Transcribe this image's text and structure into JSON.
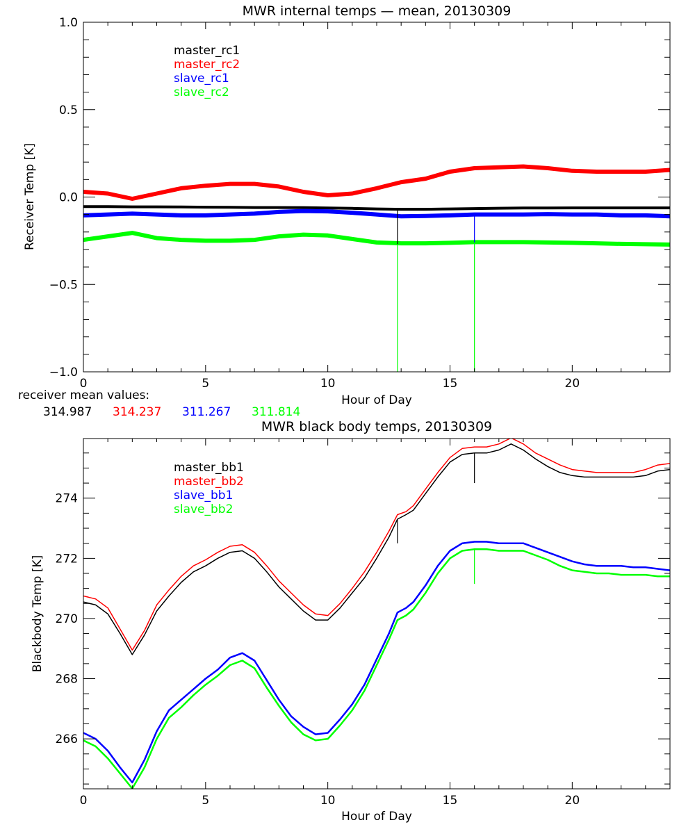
{
  "chart_data": [
    {
      "type": "line",
      "title": "MWR internal temps — mean, 20130309",
      "xlabel": "Hour of Day",
      "ylabel": "Receiver Temp [K]",
      "xlim": [
        0,
        24
      ],
      "ylim": [
        -1.0,
        1.0
      ],
      "xticks": [
        0,
        5,
        10,
        15,
        20
      ],
      "xtick_labels": [
        "0",
        "5",
        "10",
        "15",
        "20"
      ],
      "yticks": [
        -1.0,
        -0.5,
        0.0,
        0.5,
        1.0
      ],
      "ytick_labels": [
        "−1.0",
        "−0.5",
        "0.0",
        "0.5",
        "1.0"
      ],
      "x_minor_step": 1,
      "y_minor_step": 0.1,
      "grid": false,
      "legend_placement": "top-left",
      "x": [
        0,
        1,
        2,
        3,
        4,
        5,
        6,
        7,
        8,
        9,
        10,
        11,
        12,
        13,
        14,
        15,
        16,
        17,
        18,
        19,
        20,
        21,
        22,
        23,
        24
      ],
      "series": [
        {
          "name": "master_rc1",
          "color": "#000000",
          "width": 4,
          "values": [
            -0.055,
            -0.055,
            -0.056,
            -0.056,
            -0.057,
            -0.058,
            -0.059,
            -0.06,
            -0.06,
            -0.061,
            -0.063,
            -0.065,
            -0.068,
            -0.07,
            -0.07,
            -0.068,
            -0.066,
            -0.064,
            -0.063,
            -0.063,
            -0.062,
            -0.062,
            -0.062,
            -0.062,
            -0.062
          ]
        },
        {
          "name": "master_rc2",
          "color": "#ff0000",
          "width": 6,
          "values": [
            0.03,
            0.02,
            -0.01,
            0.02,
            0.05,
            0.065,
            0.075,
            0.075,
            0.06,
            0.03,
            0.01,
            0.02,
            0.05,
            0.085,
            0.105,
            0.145,
            0.165,
            0.17,
            0.175,
            0.165,
            0.15,
            0.145,
            0.145,
            0.145,
            0.155
          ]
        },
        {
          "name": "slave_rc1",
          "color": "#0000ff",
          "width": 6,
          "values": [
            -0.105,
            -0.1,
            -0.095,
            -0.1,
            -0.105,
            -0.105,
            -0.1,
            -0.095,
            -0.085,
            -0.08,
            -0.082,
            -0.09,
            -0.1,
            -0.11,
            -0.108,
            -0.105,
            -0.1,
            -0.1,
            -0.1,
            -0.098,
            -0.1,
            -0.1,
            -0.105,
            -0.105,
            -0.11
          ]
        },
        {
          "name": "slave_rc2",
          "color": "#00ff00",
          "width": 6,
          "values": [
            -0.245,
            -0.225,
            -0.205,
            -0.235,
            -0.245,
            -0.25,
            -0.25,
            -0.245,
            -0.225,
            -0.215,
            -0.22,
            -0.24,
            -0.26,
            -0.265,
            -0.265,
            -0.262,
            -0.258,
            -0.258,
            -0.258,
            -0.26,
            -0.262,
            -0.265,
            -0.268,
            -0.27,
            -0.272
          ]
        }
      ],
      "spikes": [
        {
          "x": 12.85,
          "series": "slave_rc2",
          "to": -1.0
        },
        {
          "x": 12.85,
          "series": "master_rc1",
          "to": -0.27
        },
        {
          "x": 16.0,
          "series": "slave_rc2",
          "to": -1.0
        },
        {
          "x": 16.0,
          "series": "slave_rc1",
          "to": -0.26
        }
      ],
      "annotation": {
        "label": "receiver mean values:",
        "values": [
          "314.987",
          "314.237",
          "311.267",
          "311.814"
        ],
        "colors": [
          "#000000",
          "#ff0000",
          "#0000ff",
          "#00ff00"
        ]
      }
    },
    {
      "type": "line",
      "title": "MWR black body temps, 20130309",
      "xlabel": "Hour of Day",
      "ylabel": "Blackbody Temp [K]",
      "xlim": [
        0,
        24
      ],
      "ylim": [
        264.34,
        275.98
      ],
      "xticks": [
        0,
        5,
        10,
        15,
        20
      ],
      "xtick_labels": [
        "0",
        "5",
        "10",
        "15",
        "20"
      ],
      "yticks": [
        266,
        268,
        270,
        272,
        274
      ],
      "ytick_labels": [
        "266",
        "268",
        "270",
        "272",
        "274"
      ],
      "x_minor_step": 1,
      "y_minor_step": 0.5,
      "grid": false,
      "legend_placement": "top-left",
      "x": [
        0,
        0.5,
        1,
        1.5,
        2,
        2.5,
        3,
        3.5,
        4,
        4.5,
        5,
        5.5,
        6,
        6.5,
        7,
        7.5,
        8,
        8.5,
        9,
        9.5,
        10,
        10.5,
        11,
        11.5,
        12,
        12.5,
        12.85,
        13.2,
        13.5,
        14,
        14.5,
        15,
        15.5,
        16,
        16.5,
        17,
        17.5,
        18,
        18.5,
        19,
        19.5,
        20,
        20.5,
        21,
        21.5,
        22,
        22.5,
        23,
        23.5,
        24
      ],
      "series": [
        {
          "name": "master_bb1",
          "color": "#000000",
          "width": 1.5,
          "values": [
            270.55,
            270.45,
            270.15,
            269.5,
            268.8,
            269.45,
            270.25,
            270.75,
            271.2,
            271.55,
            271.75,
            272.0,
            272.2,
            272.25,
            272.0,
            271.55,
            271.05,
            270.65,
            270.25,
            269.95,
            269.95,
            270.35,
            270.85,
            271.35,
            272.0,
            272.7,
            273.3,
            273.45,
            273.6,
            274.15,
            274.7,
            275.2,
            275.45,
            275.5,
            275.5,
            275.6,
            275.8,
            275.6,
            275.3,
            275.05,
            274.85,
            274.75,
            274.7,
            274.7,
            274.7,
            274.7,
            274.7,
            274.75,
            274.9,
            274.95
          ]
        },
        {
          "name": "master_bb2",
          "color": "#ff0000",
          "width": 1.5,
          "values": [
            270.75,
            270.65,
            270.35,
            269.65,
            268.95,
            269.6,
            270.45,
            270.95,
            271.4,
            271.75,
            271.95,
            272.2,
            272.4,
            272.45,
            272.2,
            271.75,
            271.25,
            270.85,
            270.45,
            270.15,
            270.1,
            270.5,
            271.0,
            271.55,
            272.2,
            272.9,
            273.45,
            273.55,
            273.75,
            274.3,
            274.85,
            275.35,
            275.65,
            275.7,
            275.7,
            275.8,
            276.0,
            275.8,
            275.5,
            275.3,
            275.1,
            274.95,
            274.9,
            274.85,
            274.85,
            274.85,
            274.85,
            274.95,
            275.1,
            275.15
          ]
        },
        {
          "name": "slave_bb1",
          "color": "#0000ff",
          "width": 2.5,
          "values": [
            266.2,
            266.0,
            265.6,
            265.05,
            264.55,
            265.3,
            266.25,
            266.95,
            267.3,
            267.65,
            268.0,
            268.3,
            268.7,
            268.85,
            268.6,
            267.95,
            267.3,
            266.75,
            266.4,
            266.15,
            266.2,
            266.65,
            267.15,
            267.8,
            268.65,
            269.5,
            270.2,
            270.35,
            270.55,
            271.1,
            271.75,
            272.25,
            272.5,
            272.55,
            272.55,
            272.5,
            272.5,
            272.5,
            272.35,
            272.2,
            272.05,
            271.9,
            271.8,
            271.75,
            271.75,
            271.75,
            271.7,
            271.7,
            271.65,
            271.6
          ]
        },
        {
          "name": "slave_bb2",
          "color": "#00ff00",
          "width": 2.5,
          "values": [
            265.95,
            265.75,
            265.35,
            264.85,
            264.35,
            265.05,
            266.0,
            266.7,
            267.05,
            267.45,
            267.8,
            268.1,
            268.45,
            268.6,
            268.35,
            267.7,
            267.1,
            266.55,
            266.15,
            265.95,
            266.0,
            266.45,
            266.95,
            267.6,
            268.45,
            269.3,
            269.95,
            270.1,
            270.3,
            270.85,
            271.5,
            272.0,
            272.25,
            272.3,
            272.3,
            272.25,
            272.25,
            272.25,
            272.1,
            271.95,
            271.75,
            271.6,
            271.55,
            271.5,
            271.5,
            271.45,
            271.45,
            271.45,
            271.4,
            271.4
          ]
        }
      ],
      "spikes": [
        {
          "x": 12.85,
          "series": "master_bb1",
          "to": 272.5
        },
        {
          "x": 16.0,
          "series": "master_bb1",
          "to": 274.5
        },
        {
          "x": 16.0,
          "series": "slave_bb2",
          "to": 271.15
        }
      ]
    }
  ]
}
